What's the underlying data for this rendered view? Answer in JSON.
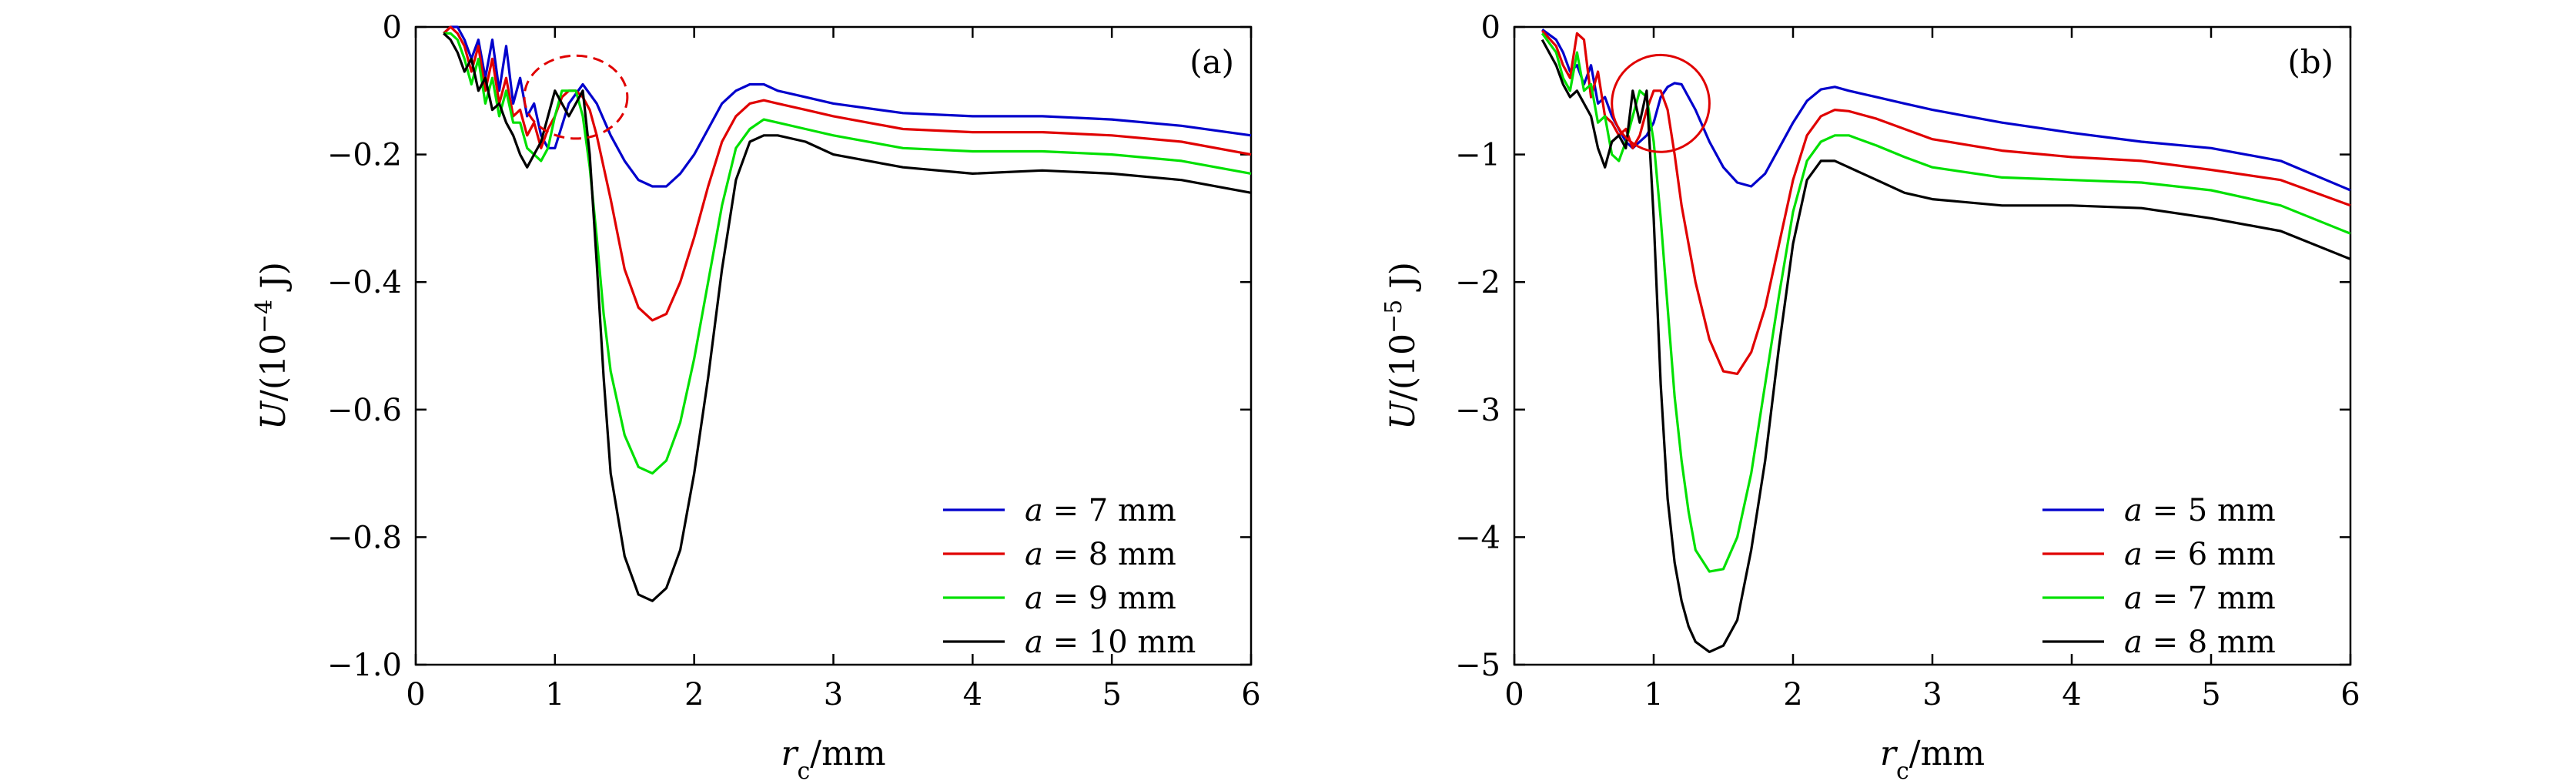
{
  "chart_data": [
    {
      "type": "line",
      "panel_label": "(a)",
      "xlabel": "r_c/mm",
      "ylabel": "U/(10^-4 J)",
      "xlim": [
        0,
        6
      ],
      "ylim": [
        -1.0,
        0
      ],
      "xticks": [
        0,
        1,
        2,
        3,
        4,
        5,
        6
      ],
      "xtick_labels": [
        "0",
        "1",
        "2",
        "3",
        "4",
        "5",
        "6"
      ],
      "yticks": [
        0,
        -0.2,
        -0.4,
        -0.6,
        -0.8,
        -1.0
      ],
      "ytick_labels": [
        "0",
        "−0.2",
        "−0.4",
        "−0.6",
        "−0.8",
        "−1.0"
      ],
      "grid": false,
      "legend_position": "bottom-right",
      "annotation": {
        "shape": "dashed-ellipse",
        "color": "#e00000",
        "cx": 1.15,
        "cy": -0.11,
        "rx": 0.37,
        "ry": 0.065
      },
      "series": [
        {
          "name": "a = 7 mm",
          "color": "#0000cc",
          "x": [
            0.2,
            0.25,
            0.3,
            0.35,
            0.4,
            0.45,
            0.5,
            0.55,
            0.6,
            0.65,
            0.7,
            0.75,
            0.8,
            0.85,
            0.9,
            0.95,
            1.0,
            1.1,
            1.2,
            1.3,
            1.4,
            1.5,
            1.6,
            1.7,
            1.8,
            1.9,
            2.0,
            2.1,
            2.2,
            2.3,
            2.4,
            2.5,
            2.6,
            2.8,
            3.0,
            3.5,
            4.0,
            4.5,
            5.0,
            5.5,
            6.0
          ],
          "y": [
            -0.01,
            -0.0,
            -0.0,
            -0.02,
            -0.05,
            -0.02,
            -0.08,
            -0.02,
            -0.1,
            -0.03,
            -0.12,
            -0.08,
            -0.14,
            -0.12,
            -0.17,
            -0.19,
            -0.19,
            -0.12,
            -0.09,
            -0.12,
            -0.17,
            -0.21,
            -0.24,
            -0.25,
            -0.25,
            -0.23,
            -0.2,
            -0.16,
            -0.12,
            -0.1,
            -0.09,
            -0.09,
            -0.1,
            -0.11,
            -0.12,
            -0.135,
            -0.14,
            -0.14,
            -0.145,
            -0.155,
            -0.17
          ]
        },
        {
          "name": "a = 8 mm",
          "color": "#e00000",
          "x": [
            0.2,
            0.25,
            0.3,
            0.35,
            0.4,
            0.45,
            0.5,
            0.55,
            0.6,
            0.65,
            0.7,
            0.75,
            0.8,
            0.85,
            0.9,
            0.95,
            1.0,
            1.05,
            1.1,
            1.15,
            1.2,
            1.25,
            1.3,
            1.4,
            1.5,
            1.6,
            1.7,
            1.8,
            1.9,
            2.0,
            2.1,
            2.2,
            2.3,
            2.4,
            2.5,
            2.6,
            2.8,
            3.0,
            3.5,
            4.0,
            4.5,
            5.0,
            5.5,
            6.0
          ],
          "y": [
            -0.01,
            -0.0,
            -0.01,
            -0.03,
            -0.07,
            -0.03,
            -0.1,
            -0.05,
            -0.12,
            -0.08,
            -0.14,
            -0.13,
            -0.17,
            -0.15,
            -0.19,
            -0.16,
            -0.14,
            -0.11,
            -0.1,
            -0.1,
            -0.11,
            -0.13,
            -0.17,
            -0.27,
            -0.38,
            -0.44,
            -0.46,
            -0.45,
            -0.4,
            -0.33,
            -0.25,
            -0.18,
            -0.14,
            -0.12,
            -0.115,
            -0.12,
            -0.13,
            -0.14,
            -0.16,
            -0.165,
            -0.165,
            -0.17,
            -0.18,
            -0.2
          ]
        },
        {
          "name": "a = 9 mm",
          "color": "#00e000",
          "x": [
            0.2,
            0.25,
            0.3,
            0.35,
            0.4,
            0.45,
            0.5,
            0.55,
            0.6,
            0.65,
            0.7,
            0.75,
            0.8,
            0.85,
            0.9,
            0.95,
            1.0,
            1.05,
            1.1,
            1.15,
            1.2,
            1.25,
            1.3,
            1.35,
            1.4,
            1.5,
            1.6,
            1.7,
            1.8,
            1.9,
            2.0,
            2.1,
            2.2,
            2.3,
            2.4,
            2.5,
            2.6,
            2.8,
            3.0,
            3.5,
            4.0,
            4.5,
            5.0,
            5.5,
            6.0
          ],
          "y": [
            -0.01,
            -0.01,
            -0.02,
            -0.05,
            -0.09,
            -0.05,
            -0.12,
            -0.08,
            -0.14,
            -0.1,
            -0.15,
            -0.15,
            -0.19,
            -0.2,
            -0.21,
            -0.19,
            -0.14,
            -0.1,
            -0.1,
            -0.1,
            -0.14,
            -0.22,
            -0.33,
            -0.45,
            -0.54,
            -0.64,
            -0.69,
            -0.7,
            -0.68,
            -0.62,
            -0.52,
            -0.4,
            -0.28,
            -0.19,
            -0.16,
            -0.145,
            -0.15,
            -0.16,
            -0.17,
            -0.19,
            -0.195,
            -0.195,
            -0.2,
            -0.21,
            -0.23
          ]
        },
        {
          "name": "a = 10 mm",
          "color": "#000000",
          "x": [
            0.2,
            0.25,
            0.3,
            0.35,
            0.4,
            0.45,
            0.5,
            0.55,
            0.6,
            0.65,
            0.7,
            0.75,
            0.8,
            0.85,
            0.9,
            0.95,
            1.0,
            1.05,
            1.1,
            1.15,
            1.2,
            1.25,
            1.3,
            1.35,
            1.4,
            1.5,
            1.6,
            1.7,
            1.8,
            1.9,
            2.0,
            2.1,
            2.2,
            2.3,
            2.4,
            2.5,
            2.6,
            2.8,
            3.0,
            3.5,
            4.0,
            4.5,
            5.0,
            5.5,
            6.0
          ],
          "y": [
            -0.01,
            -0.02,
            -0.04,
            -0.07,
            -0.05,
            -0.1,
            -0.08,
            -0.13,
            -0.12,
            -0.15,
            -0.17,
            -0.2,
            -0.22,
            -0.2,
            -0.18,
            -0.14,
            -0.1,
            -0.12,
            -0.14,
            -0.12,
            -0.1,
            -0.2,
            -0.37,
            -0.55,
            -0.7,
            -0.83,
            -0.89,
            -0.9,
            -0.88,
            -0.82,
            -0.7,
            -0.55,
            -0.38,
            -0.24,
            -0.18,
            -0.17,
            -0.17,
            -0.18,
            -0.2,
            -0.22,
            -0.23,
            -0.225,
            -0.23,
            -0.24,
            -0.26
          ]
        }
      ]
    },
    {
      "type": "line",
      "panel_label": "(b)",
      "xlabel": "r_c/mm",
      "ylabel": "U/(10^-5 J)",
      "xlim": [
        0,
        6
      ],
      "ylim": [
        -5,
        0
      ],
      "xticks": [
        0,
        1,
        2,
        3,
        4,
        5,
        6
      ],
      "xtick_labels": [
        "0",
        "1",
        "2",
        "3",
        "4",
        "5",
        "6"
      ],
      "yticks": [
        0,
        -1,
        -2,
        -3,
        -4,
        -5
      ],
      "ytick_labels": [
        "0",
        "−1",
        "−2",
        "−3",
        "−4",
        "−5"
      ],
      "grid": false,
      "legend_position": "bottom-right",
      "annotation": {
        "shape": "solid-ellipse",
        "color": "#e00000",
        "cx": 1.05,
        "cy": -0.6,
        "rx": 0.35,
        "ry": 0.38
      },
      "series": [
        {
          "name": "a = 5 mm",
          "color": "#0000cc",
          "x": [
            0.2,
            0.3,
            0.35,
            0.4,
            0.45,
            0.5,
            0.55,
            0.6,
            0.65,
            0.7,
            0.75,
            0.8,
            0.85,
            0.9,
            0.95,
            1.0,
            1.05,
            1.1,
            1.15,
            1.2,
            1.3,
            1.4,
            1.5,
            1.6,
            1.7,
            1.8,
            1.9,
            2.0,
            2.1,
            2.2,
            2.3,
            2.4,
            2.6,
            2.8,
            3.0,
            3.5,
            4.0,
            4.5,
            5.0,
            5.5,
            6.0
          ],
          "y": [
            -0.02,
            -0.1,
            -0.2,
            -0.35,
            -0.3,
            -0.45,
            -0.3,
            -0.6,
            -0.55,
            -0.7,
            -0.8,
            -0.9,
            -0.95,
            -0.9,
            -0.85,
            -0.75,
            -0.55,
            -0.47,
            -0.44,
            -0.45,
            -0.65,
            -0.9,
            -1.1,
            -1.22,
            -1.25,
            -1.15,
            -0.95,
            -0.75,
            -0.58,
            -0.49,
            -0.47,
            -0.5,
            -0.55,
            -0.6,
            -0.65,
            -0.75,
            -0.83,
            -0.9,
            -0.95,
            -1.05,
            -1.28
          ]
        },
        {
          "name": "a = 6 mm",
          "color": "#e00000",
          "x": [
            0.2,
            0.3,
            0.35,
            0.4,
            0.45,
            0.5,
            0.55,
            0.6,
            0.65,
            0.7,
            0.75,
            0.8,
            0.85,
            0.9,
            0.95,
            1.0,
            1.05,
            1.1,
            1.15,
            1.2,
            1.3,
            1.4,
            1.5,
            1.6,
            1.7,
            1.8,
            1.9,
            2.0,
            2.1,
            2.2,
            2.3,
            2.4,
            2.6,
            2.8,
            3.0,
            3.5,
            4.0,
            4.5,
            5.0,
            5.5,
            6.0
          ],
          "y": [
            -0.03,
            -0.15,
            -0.3,
            -0.4,
            -0.05,
            -0.1,
            -0.55,
            -0.35,
            -0.7,
            -0.75,
            -0.85,
            -0.8,
            -0.95,
            -0.85,
            -0.65,
            -0.5,
            -0.5,
            -0.65,
            -1.0,
            -1.4,
            -2.0,
            -2.45,
            -2.7,
            -2.72,
            -2.55,
            -2.2,
            -1.7,
            -1.2,
            -0.85,
            -0.7,
            -0.65,
            -0.66,
            -0.72,
            -0.8,
            -0.88,
            -0.97,
            -1.02,
            -1.05,
            -1.12,
            -1.2,
            -1.4
          ]
        },
        {
          "name": "a = 7 mm",
          "color": "#00e000",
          "x": [
            0.2,
            0.3,
            0.35,
            0.4,
            0.45,
            0.5,
            0.55,
            0.6,
            0.65,
            0.7,
            0.75,
            0.8,
            0.85,
            0.9,
            0.95,
            1.0,
            1.05,
            1.1,
            1.15,
            1.2,
            1.25,
            1.3,
            1.4,
            1.5,
            1.6,
            1.7,
            1.8,
            1.9,
            2.0,
            2.1,
            2.2,
            2.3,
            2.4,
            2.6,
            2.8,
            3.0,
            3.5,
            4.0,
            4.5,
            5.0,
            5.5,
            6.0
          ],
          "y": [
            -0.05,
            -0.2,
            -0.4,
            -0.5,
            -0.2,
            -0.5,
            -0.45,
            -0.75,
            -0.7,
            -1.0,
            -1.05,
            -0.9,
            -0.7,
            -0.5,
            -0.55,
            -0.9,
            -1.5,
            -2.2,
            -2.9,
            -3.4,
            -3.8,
            -4.1,
            -4.27,
            -4.25,
            -4.0,
            -3.5,
            -2.8,
            -2.1,
            -1.45,
            -1.05,
            -0.9,
            -0.85,
            -0.85,
            -0.93,
            -1.02,
            -1.1,
            -1.18,
            -1.2,
            -1.22,
            -1.28,
            -1.4,
            -1.62
          ]
        },
        {
          "name": "a = 8 mm",
          "color": "#000000",
          "x": [
            0.2,
            0.3,
            0.35,
            0.4,
            0.45,
            0.5,
            0.55,
            0.6,
            0.65,
            0.7,
            0.75,
            0.8,
            0.85,
            0.9,
            0.95,
            1.0,
            1.05,
            1.1,
            1.15,
            1.2,
            1.25,
            1.3,
            1.4,
            1.5,
            1.6,
            1.7,
            1.8,
            1.9,
            2.0,
            2.1,
            2.2,
            2.3,
            2.4,
            2.6,
            2.8,
            3.0,
            3.5,
            4.0,
            4.5,
            5.0,
            5.5,
            6.0
          ],
          "y": [
            -0.1,
            -0.3,
            -0.45,
            -0.55,
            -0.5,
            -0.6,
            -0.7,
            -0.95,
            -1.1,
            -0.9,
            -0.85,
            -0.95,
            -0.5,
            -0.75,
            -0.5,
            -1.5,
            -2.8,
            -3.7,
            -4.2,
            -4.5,
            -4.7,
            -4.82,
            -4.9,
            -4.85,
            -4.65,
            -4.1,
            -3.4,
            -2.5,
            -1.7,
            -1.2,
            -1.05,
            -1.05,
            -1.1,
            -1.2,
            -1.3,
            -1.35,
            -1.4,
            -1.4,
            -1.42,
            -1.5,
            -1.6,
            -1.82
          ]
        }
      ]
    }
  ]
}
